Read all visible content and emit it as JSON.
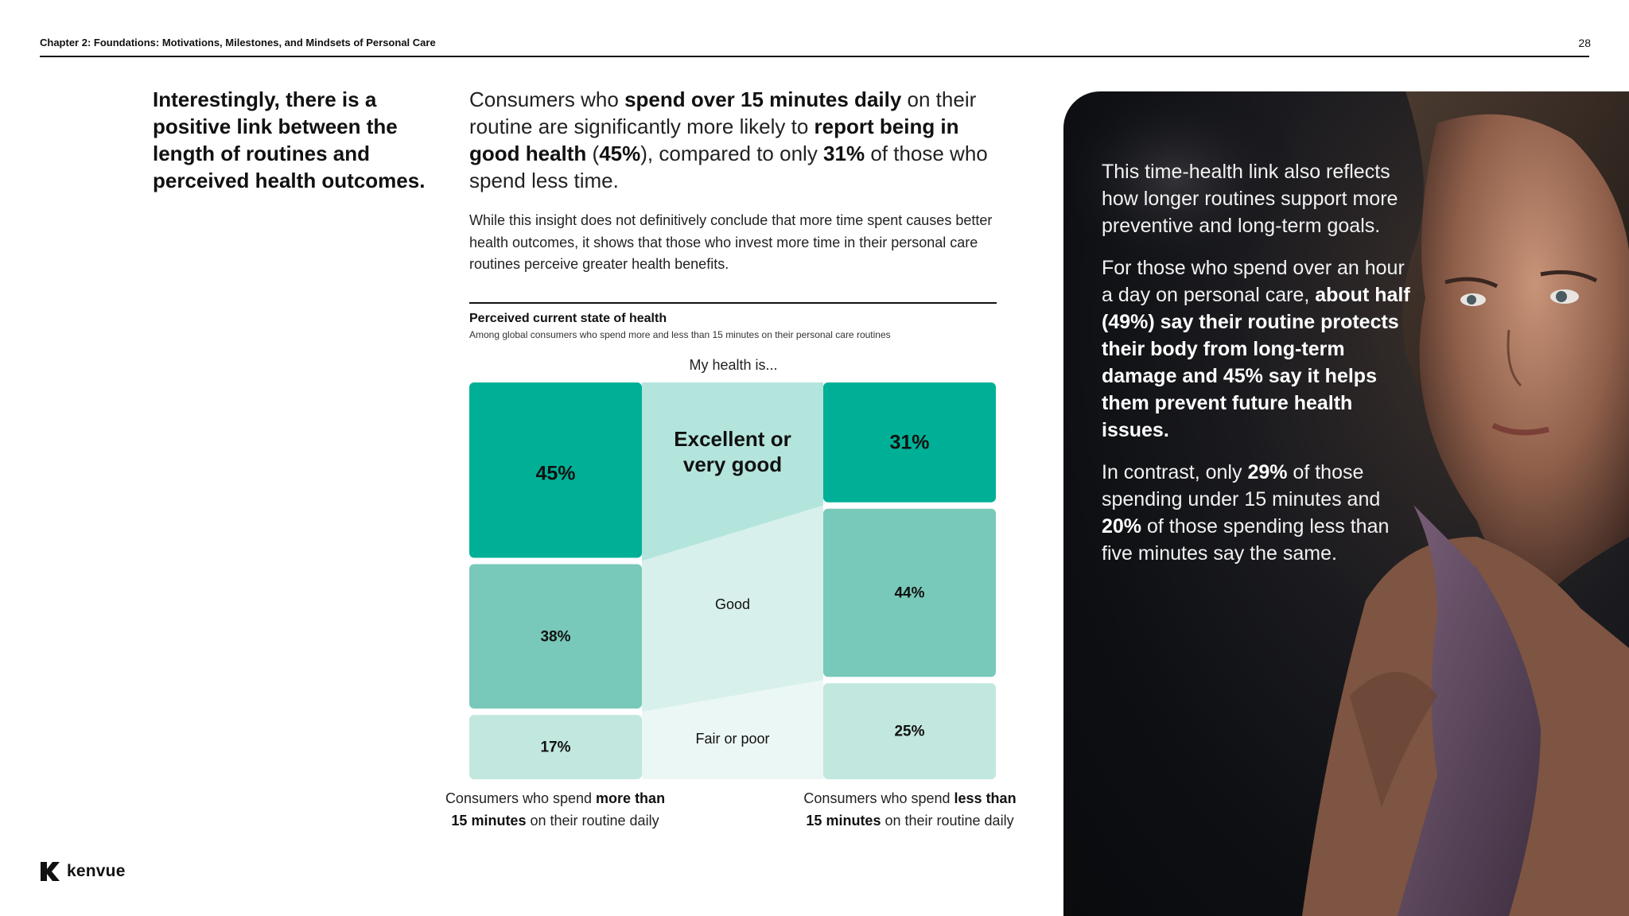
{
  "header": {
    "title": "Chapter 2: Foundations: Motivations, Milestones, and Mindsets of Personal Care",
    "page_number": "28"
  },
  "pull_quote": "Interestingly, there is a positive link between the length of routines and perceived health outcomes.",
  "lead": {
    "p1": "Consumers who ",
    "b1": "spend over 15 minutes daily",
    "p2": " on their routine are significantly more likely to ",
    "b2": "report being in good health",
    "p3": " (",
    "b3": "45%",
    "p4": "), compared to only ",
    "b4": "31%",
    "p5": " of those who spend less time."
  },
  "body_text": "While this insight does not definitively conclude that more time spent causes better health outcomes, it shows that those who invest more time in their personal care routines perceive greater health benefits.",
  "chart_data": {
    "type": "bar",
    "stacked": true,
    "title": "Perceived current state of health",
    "subtitle": "Among global consumers who spend more and less than 15 minutes on their personal care routines",
    "axis_label": "My health is...",
    "categories": [
      "Consumers who spend more than 15 minutes on their routine daily",
      "Consumers who spend less than 15 minutes on their routine daily"
    ],
    "series": [
      {
        "name": "Excellent or very good",
        "values": [
          45,
          31
        ],
        "color": "#00b096"
      },
      {
        "name": "Good",
        "values": [
          38,
          44
        ],
        "color": "#78c9b9"
      },
      {
        "name": "Fair or poor",
        "values": [
          17,
          25
        ],
        "color": "#c2e7df"
      }
    ],
    "band_colors": [
      "#b3e5dd",
      "#d8f0eb",
      "#ebf7f4"
    ],
    "band_labels": [
      "Excellent or very good",
      "Good",
      "Fair or poor"
    ],
    "value_labels": [
      [
        "45%",
        "31%"
      ],
      [
        "38%",
        "44%"
      ],
      [
        "17%",
        "25%"
      ]
    ],
    "ylim": [
      0,
      100
    ]
  },
  "captions": {
    "left": {
      "pre": "Consumers who spend ",
      "bold1": "more than",
      "bold2": "15 minutes",
      "post": " on their routine daily"
    },
    "right": {
      "pre": "Consumers who spend ",
      "bold1": "less than",
      "bold2": "15 minutes",
      "post": " on their routine daily"
    }
  },
  "logo": {
    "text": "kenvue"
  },
  "photo_panel": {
    "p1": "This time-health link also reflects how longer routines support more preventive and long-term goals.",
    "p2_pre": "For those who spend over an hour a day on personal care, ",
    "p2_bold": "about half (49%) say their routine protects their body from long-term damage and 45% say it helps them prevent future health issues.",
    "p3_a": "In contrast, only ",
    "p3_b": "29%",
    "p3_c": " of those spending under 15 minutes and ",
    "p3_d": "20%",
    "p3_e": " of those spending less than five minutes say the same."
  }
}
